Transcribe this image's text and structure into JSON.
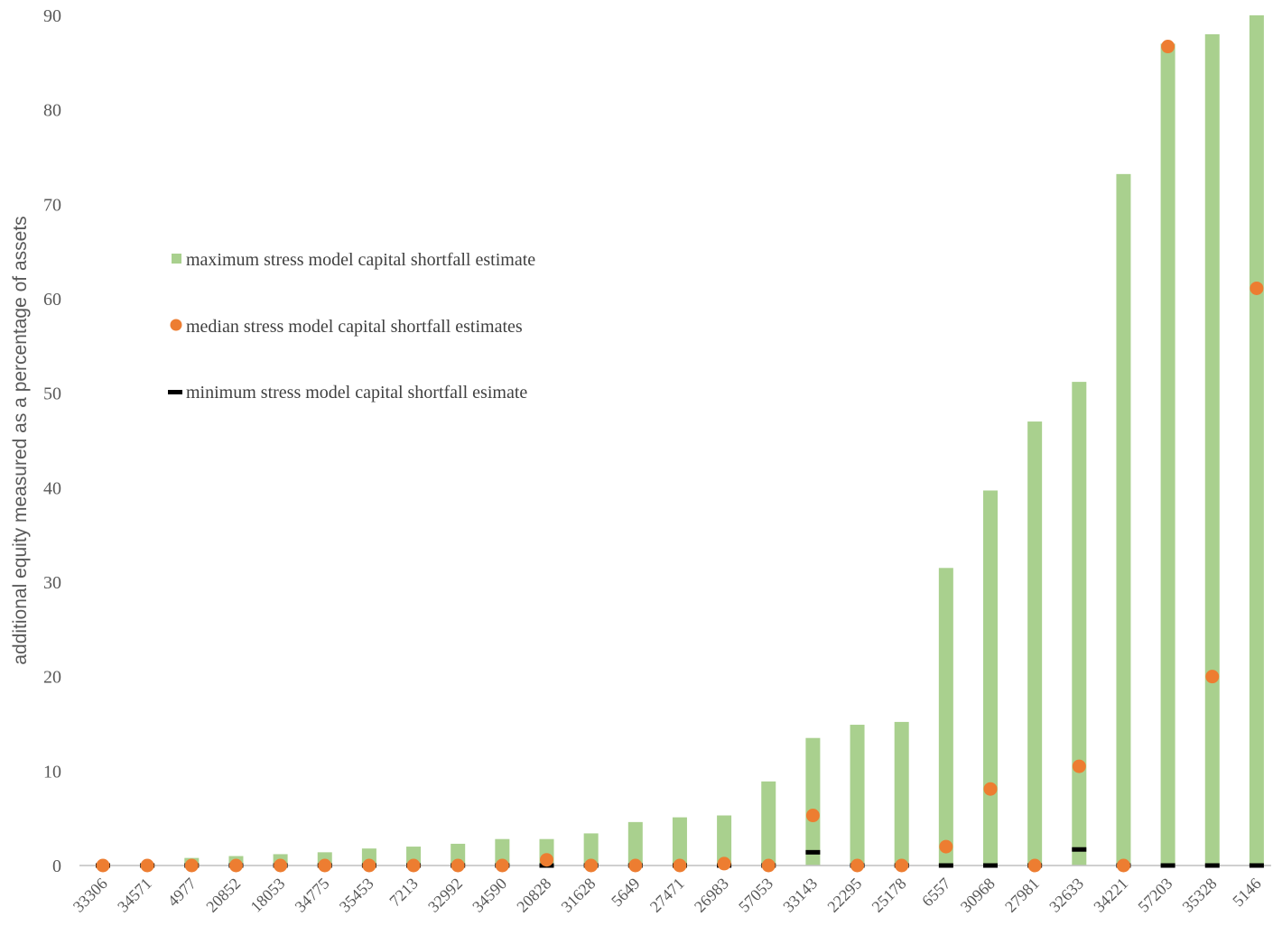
{
  "chart_data": {
    "type": "bar",
    "title": "",
    "xlabel": "",
    "ylabel": "additional equity measured as a percentage of assets",
    "ylim": [
      0,
      90
    ],
    "yticks": [
      0,
      10,
      20,
      30,
      40,
      50,
      60,
      70,
      80,
      90
    ],
    "grid": false,
    "legend_position": "left",
    "colors": {
      "bar": "#a9d08e",
      "median": "#ed7d31",
      "minimum": "#000000",
      "axis": "#bfbfbf",
      "text": "#595959"
    },
    "categories": [
      "33306",
      "34571",
      "4977",
      "20852",
      "18053",
      "34775",
      "35453",
      "7213",
      "32992",
      "34590",
      "20828",
      "31628",
      "5649",
      "27471",
      "26983",
      "57053",
      "33143",
      "22295",
      "25178",
      "6557",
      "30968",
      "27981",
      "32633",
      "34221",
      "57203",
      "35328",
      "5146"
    ],
    "series": [
      {
        "name": "maximum stress model capital shortfall estimate",
        "kind": "bar",
        "values": [
          0.1,
          0.2,
          0.8,
          1.0,
          1.2,
          1.4,
          1.8,
          2.0,
          2.3,
          2.8,
          2.8,
          3.4,
          4.6,
          5.1,
          5.3,
          8.9,
          13.5,
          14.9,
          15.2,
          31.5,
          39.7,
          47.0,
          51.2,
          73.2,
          87.0,
          88.0,
          90.0
        ]
      },
      {
        "name": "median stress model capital shortfall estimates",
        "kind": "dot",
        "values": [
          0.0,
          0.0,
          0.0,
          0.0,
          0.0,
          0.0,
          0.0,
          0.0,
          0.0,
          0.0,
          0.6,
          0.0,
          0.0,
          0.0,
          0.2,
          0.0,
          5.3,
          0.0,
          0.0,
          2.0,
          8.1,
          0.0,
          10.5,
          0.0,
          86.7,
          20.0,
          61.1
        ]
      },
      {
        "name": "minimum stress model capital shortfall esimate",
        "kind": "dash",
        "values": [
          0.0,
          0.0,
          0.0,
          0.0,
          0.0,
          0.0,
          0.0,
          0.0,
          0.0,
          0.0,
          0.0,
          0.0,
          0.0,
          0.0,
          0.0,
          0.0,
          1.4,
          0.0,
          0.0,
          0.0,
          0.0,
          0.0,
          1.7,
          0.0,
          0.0,
          0.0,
          0.0
        ]
      }
    ]
  }
}
